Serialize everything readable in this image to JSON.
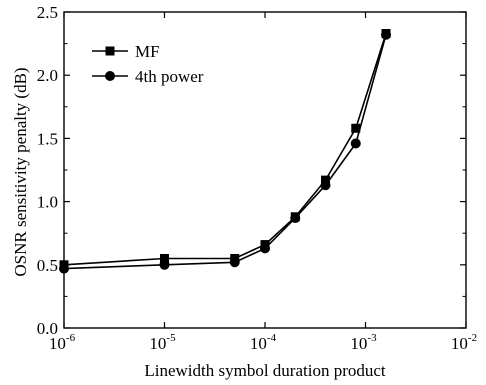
{
  "chart_data": {
    "type": "line",
    "title": "",
    "xlabel": "Linewidth symbol duration product",
    "ylabel": "OSNR sensitivity penalty (dB)",
    "x_scale": "log",
    "xlim": [
      1e-06,
      0.01
    ],
    "ylim": [
      0.0,
      2.5
    ],
    "x_ticks": [
      {
        "value": 1e-06,
        "base": "10",
        "exp": "-6"
      },
      {
        "value": 1e-05,
        "base": "10",
        "exp": "-5"
      },
      {
        "value": 0.0001,
        "base": "10",
        "exp": "-4"
      },
      {
        "value": 0.001,
        "base": "10",
        "exp": "-3"
      },
      {
        "value": 0.01,
        "base": "10",
        "exp": "-2"
      }
    ],
    "y_ticks": [
      "0.0",
      "0.5",
      "1.0",
      "1.5",
      "2.0",
      "2.5"
    ],
    "grid": false,
    "legend_position": "top-left",
    "series": [
      {
        "name": "MF",
        "marker": "square",
        "color": "#000000",
        "x": [
          1e-06,
          1e-05,
          5e-05,
          0.0001,
          0.0002,
          0.0004,
          0.0008,
          0.0016
        ],
        "y": [
          0.5,
          0.55,
          0.55,
          0.66,
          0.88,
          1.17,
          1.58,
          2.33
        ]
      },
      {
        "name": "4th power",
        "marker": "circle",
        "color": "#000000",
        "x": [
          1e-06,
          1e-05,
          5e-05,
          0.0001,
          0.0002,
          0.0004,
          0.0008,
          0.0016
        ],
        "y": [
          0.47,
          0.5,
          0.52,
          0.63,
          0.87,
          1.13,
          1.46,
          2.32
        ]
      }
    ]
  }
}
